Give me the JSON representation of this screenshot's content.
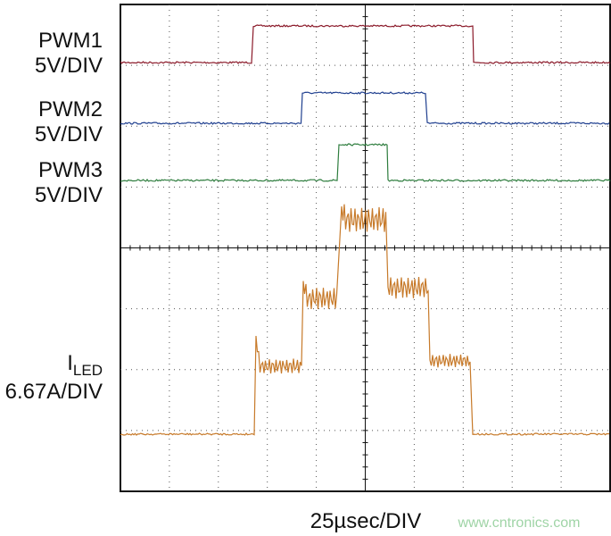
{
  "traces": [
    {
      "name": "PWM1",
      "scale": "5V/DIV"
    },
    {
      "name": "PWM2",
      "scale": "5V/DIV"
    },
    {
      "name": "PWM3",
      "scale": "5V/DIV"
    },
    {
      "name": "I",
      "name_subscript": "LED",
      "scale": "6.67A/DIV"
    }
  ],
  "time_scale": "25µsec/DIV",
  "watermark": "www.cntronics.com"
}
